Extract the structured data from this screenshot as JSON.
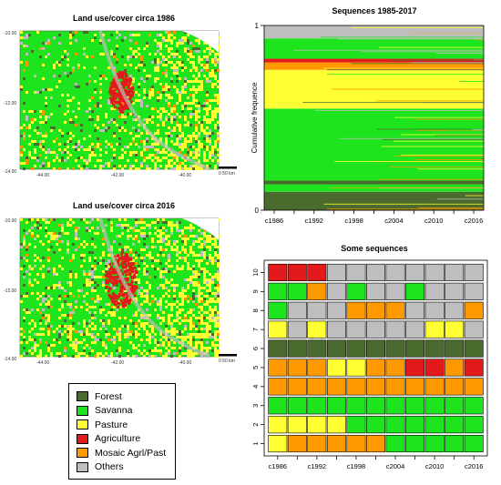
{
  "maps": [
    {
      "title": "Land use/cover circa 1986",
      "lat_ticks": [
        "-10.00",
        "-12.00",
        "-14.00"
      ],
      "lon_ticks": [
        "-44.00",
        "-42.00",
        "-40.00"
      ],
      "scale_label": "0     50 km"
    },
    {
      "title": "Land use/cover circa 2016",
      "lat_ticks": [
        "-10.00",
        "-12.00",
        "-14.00"
      ],
      "lon_ticks": [
        "-44.00",
        "-42.00",
        "-40.00"
      ],
      "scale_label": "0     50 km"
    }
  ],
  "legend": {
    "items": [
      {
        "label": "Forest",
        "color": "#4b6b2e"
      },
      {
        "label": "Savanna",
        "color": "#1ee41e"
      },
      {
        "label": "Pasture",
        "color": "#ffff33"
      },
      {
        "label": "Agriculture",
        "color": "#e31a1c"
      },
      {
        "label": "Mosaic Agrl/Past",
        "color": "#ff9900"
      },
      {
        "label": "Others",
        "color": "#bebebe"
      }
    ]
  },
  "chart_data": [
    {
      "type": "area",
      "title": "Sequences 1985-2017",
      "ylabel": "Cumulative frequence",
      "xlabel": "",
      "x_tick_labels": [
        "c1986",
        "c1992",
        "c1998",
        "c2004",
        "c2010",
        "c2016"
      ],
      "y_tick_labels": [
        "0",
        "1"
      ],
      "ylim": [
        0,
        1
      ],
      "states": [
        "Forest",
        "Savanna",
        "Pasture",
        "Agriculture",
        "Mosaic Agrl/Past",
        "Others"
      ],
      "bands_bottom_to_top": [
        {
          "state": "Forest",
          "from": 0.0,
          "to": 0.1
        },
        {
          "state": "Savanna",
          "from": 0.1,
          "to": 0.14
        },
        {
          "state": "Forest",
          "from": 0.14,
          "to": 0.16
        },
        {
          "state": "Savanna",
          "from": 0.16,
          "to": 0.55
        },
        {
          "state": "Pasture",
          "from": 0.55,
          "to": 0.76
        },
        {
          "state": "Mosaic Agrl/Past",
          "from": 0.76,
          "to": 0.8
        },
        {
          "state": "Agriculture",
          "from": 0.8,
          "to": 0.82
        },
        {
          "state": "Savanna",
          "from": 0.82,
          "to": 0.93
        },
        {
          "state": "Others",
          "from": 0.93,
          "to": 1.0
        }
      ]
    },
    {
      "type": "heatmap",
      "title": "Some sequences",
      "x_tick_labels": [
        "c1986",
        "c1992",
        "c1998",
        "c2004",
        "c2010",
        "c2016"
      ],
      "periods": [
        "c1986",
        "c1989",
        "c1992",
        "c1995",
        "c1998",
        "c2001",
        "c2004",
        "c2007",
        "c2010",
        "c2013",
        "c2016"
      ],
      "sequence_ids": [
        "1",
        "2",
        "3",
        "4",
        "5",
        "6",
        "7",
        "8",
        "9",
        "10"
      ],
      "sequences": {
        "1": [
          "Pasture",
          "Mosaic Agrl/Past",
          "Mosaic Agrl/Past",
          "Mosaic Agrl/Past",
          "Mosaic Agrl/Past",
          "Mosaic Agrl/Past",
          "Savanna",
          "Savanna",
          "Savanna",
          "Savanna",
          "Savanna"
        ],
        "2": [
          "Pasture",
          "Pasture",
          "Pasture",
          "Pasture",
          "Savanna",
          "Savanna",
          "Savanna",
          "Savanna",
          "Savanna",
          "Savanna",
          "Savanna"
        ],
        "3": [
          "Savanna",
          "Savanna",
          "Savanna",
          "Savanna",
          "Savanna",
          "Savanna",
          "Savanna",
          "Savanna",
          "Savanna",
          "Savanna",
          "Savanna"
        ],
        "4": [
          "Mosaic Agrl/Past",
          "Mosaic Agrl/Past",
          "Mosaic Agrl/Past",
          "Mosaic Agrl/Past",
          "Mosaic Agrl/Past",
          "Mosaic Agrl/Past",
          "Mosaic Agrl/Past",
          "Mosaic Agrl/Past",
          "Mosaic Agrl/Past",
          "Mosaic Agrl/Past",
          "Mosaic Agrl/Past"
        ],
        "5": [
          "Mosaic Agrl/Past",
          "Mosaic Agrl/Past",
          "Mosaic Agrl/Past",
          "Pasture",
          "Pasture",
          "Mosaic Agrl/Past",
          "Mosaic Agrl/Past",
          "Agriculture",
          "Agriculture",
          "Mosaic Agrl/Past",
          "Agriculture"
        ],
        "6": [
          "Forest",
          "Forest",
          "Forest",
          "Forest",
          "Forest",
          "Forest",
          "Forest",
          "Forest",
          "Forest",
          "Forest",
          "Forest"
        ],
        "7": [
          "Pasture",
          "Others",
          "Pasture",
          "Others",
          "Others",
          "Others",
          "Others",
          "Others",
          "Pasture",
          "Pasture",
          "Others"
        ],
        "8": [
          "Savanna",
          "Others",
          "Others",
          "Others",
          "Mosaic Agrl/Past",
          "Mosaic Agrl/Past",
          "Mosaic Agrl/Past",
          "Others",
          "Others",
          "Others",
          "Mosaic Agrl/Past"
        ],
        "9": [
          "Savanna",
          "Savanna",
          "Mosaic Agrl/Past",
          "Others",
          "Savanna",
          "Others",
          "Others",
          "Savanna",
          "Others",
          "Others",
          "Others"
        ],
        "10": [
          "Agriculture",
          "Agriculture",
          "Agriculture",
          "Others",
          "Others",
          "Others",
          "Others",
          "Others",
          "Others",
          "Others",
          "Others"
        ]
      }
    }
  ]
}
